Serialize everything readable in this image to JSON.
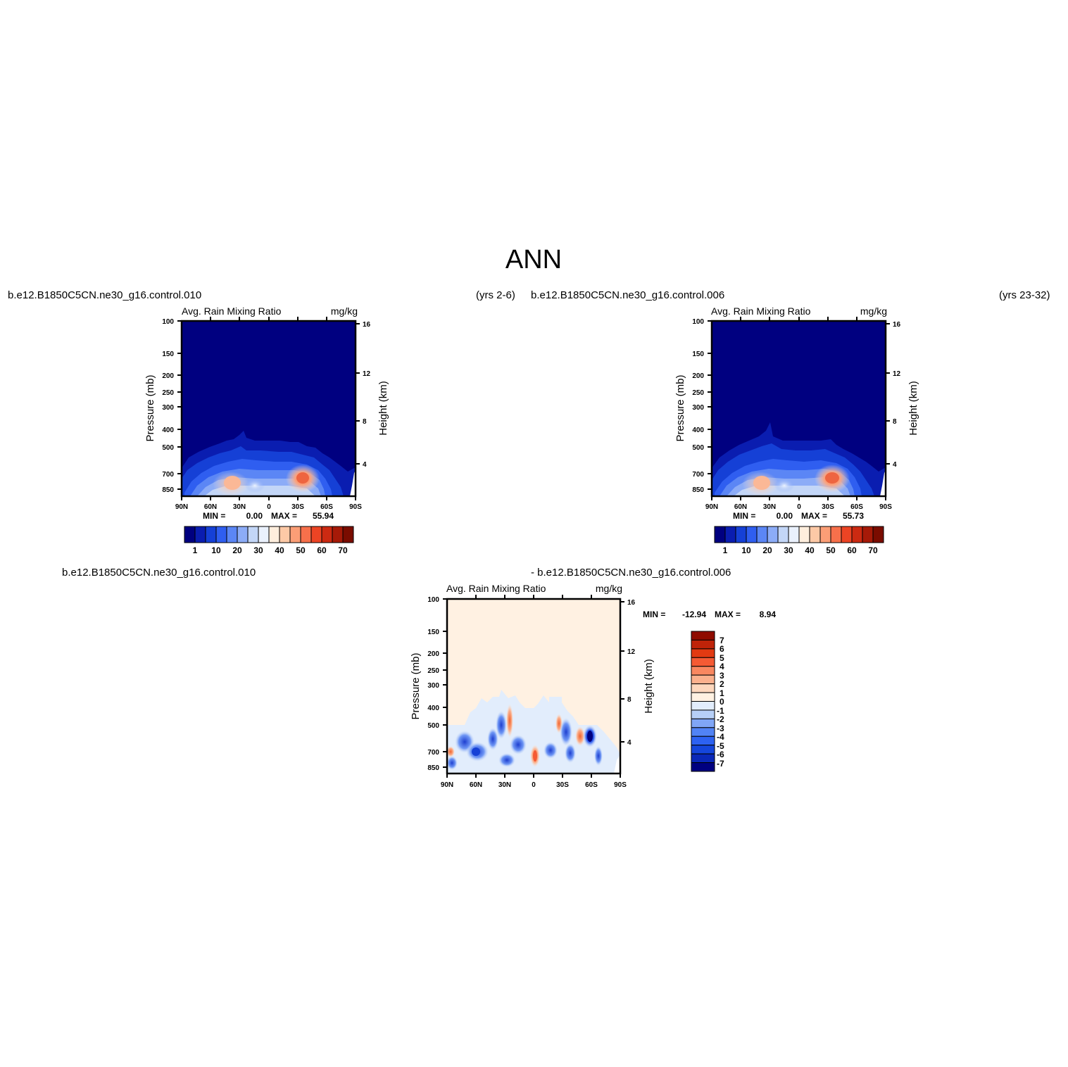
{
  "figure_title": "ANN",
  "chart_data": [
    {
      "type": "heatmap",
      "case_left": "b.e12.B1850C5CN.ne30_g16.control.010",
      "case_right": "(yrs 2-6)",
      "plot_title": "Avg. Rain Mixing Ratio",
      "units": "mg/kg",
      "ylabel": "Pressure (mb)",
      "ylabel_right": "Height (km)",
      "x_ticks": [
        "90N",
        "60N",
        "30N",
        "0",
        "30S",
        "60S",
        "90S"
      ],
      "y_ticks": [
        "100",
        "150",
        "200",
        "250",
        "300",
        "400",
        "500",
        "700",
        "850"
      ],
      "y_ticks_right": [
        "16",
        "12",
        "8",
        "4"
      ],
      "stats": {
        "min_label": "MIN =",
        "min": "0.00",
        "max_label": "MAX =",
        "max": "55.94"
      },
      "colorbar_ticks": [
        "1",
        "10",
        "20",
        "30",
        "40",
        "50",
        "60",
        "70"
      ],
      "max_value": 55.94
    },
    {
      "type": "heatmap",
      "case_left": "b.e12.B1850C5CN.ne30_g16.control.006",
      "case_right": "(yrs 23-32)",
      "plot_title": "Avg. Rain Mixing Ratio",
      "units": "mg/kg",
      "ylabel": "Pressure (mb)",
      "ylabel_right": "Height (km)",
      "x_ticks": [
        "90N",
        "60N",
        "30N",
        "0",
        "30S",
        "60S",
        "90S"
      ],
      "y_ticks": [
        "100",
        "150",
        "200",
        "250",
        "300",
        "400",
        "500",
        "700",
        "850"
      ],
      "y_ticks_right": [
        "16",
        "12",
        "8",
        "4"
      ],
      "stats": {
        "min_label": "MIN =",
        "min": "0.00",
        "max_label": "MAX =",
        "max": "55.73"
      },
      "colorbar_ticks": [
        "1",
        "10",
        "20",
        "30",
        "40",
        "50",
        "60",
        "70"
      ],
      "max_value": 55.73
    },
    {
      "type": "heatmap",
      "case_left": "b.e12.B1850C5CN.ne30_g16.control.010",
      "case_right": "- b.e12.B1850C5CN.ne30_g16.control.006",
      "plot_title": "Avg. Rain Mixing Ratio",
      "units": "mg/kg",
      "ylabel": "Pressure (mb)",
      "ylabel_right": "Height (km)",
      "x_ticks": [
        "90N",
        "60N",
        "30N",
        "0",
        "30S",
        "60S",
        "90S"
      ],
      "y_ticks": [
        "100",
        "150",
        "200",
        "250",
        "300",
        "400",
        "500",
        "700",
        "850"
      ],
      "y_ticks_right": [
        "16",
        "12",
        "8",
        "4"
      ],
      "stats": {
        "min_label": "MIN =",
        "min": "-12.94",
        "max_label": "MAX =",
        "max": "8.94"
      },
      "colorbar_ticks": [
        "7",
        "6",
        "5",
        "4",
        "3",
        "2",
        "1",
        "0",
        "-1",
        "-2",
        "-3",
        "-4",
        "-5",
        "-6",
        "-7"
      ]
    }
  ],
  "colors": {
    "abs_scale": [
      "#000080",
      "#0a1db0",
      "#1540d6",
      "#2f5ef0",
      "#5b86f5",
      "#8cacf7",
      "#c3d6f7",
      "#eaf1fd",
      "#ffeedd",
      "#fdc9a6",
      "#fb9e76",
      "#f7704b",
      "#ec4424",
      "#cc2a12",
      "#a61a08",
      "#7a0c00"
    ],
    "diff_scale": [
      "#000080",
      "#0a28b8",
      "#1546dc",
      "#2d62f2",
      "#5183f5",
      "#80a6f6",
      "#b6cff7",
      "#e2edfc",
      "#fff1e2",
      "#fdd7bd",
      "#fbb08d",
      "#f98760",
      "#f55a34",
      "#e23a12",
      "#bf2309",
      "#8f0c00"
    ]
  }
}
